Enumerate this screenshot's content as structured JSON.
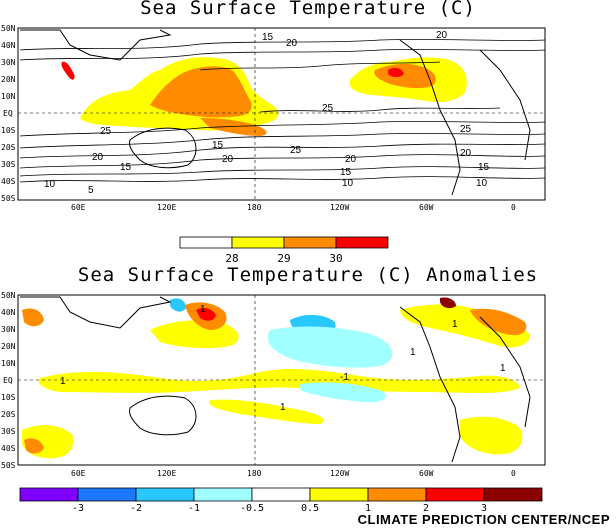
{
  "top_map": {
    "title": "Sea Surface Temperature (C)",
    "lat_labels": [
      "50N",
      "40N",
      "30N",
      "20N",
      "10N",
      "EQ",
      "10S",
      "20S",
      "30S",
      "40S",
      "50S"
    ],
    "lon_labels": [
      "60E",
      "120E",
      "180",
      "120W",
      "60W",
      "0"
    ],
    "contour_labels": [
      "15",
      "20",
      "25",
      "25",
      "20",
      "15",
      "10",
      "5",
      "15",
      "20",
      "25",
      "20",
      "15",
      "10",
      "25",
      "20",
      "15",
      "10",
      "20"
    ],
    "colorbar": {
      "labels": [
        "28",
        "29",
        "30"
      ],
      "colors": [
        "#ffffff",
        "#ffff00",
        "#ff8c00",
        "#ff0000"
      ]
    }
  },
  "bottom_map": {
    "title": "Sea Surface Temperature (C) Anomalies",
    "lat_labels": [
      "50N",
      "40N",
      "30N",
      "20N",
      "10N",
      "EQ",
      "10S",
      "20S",
      "30S",
      "40S",
      "50S"
    ],
    "lon_labels": [
      "60E",
      "120E",
      "180",
      "120W",
      "60W",
      "0"
    ],
    "contour_labels": [
      "1",
      "1",
      "1",
      "1",
      "1",
      "-1",
      "1"
    ],
    "colorbar": {
      "labels": [
        "-3",
        "-2",
        "-1",
        "-0.5",
        "0.5",
        "1",
        "2",
        "3"
      ],
      "colors": [
        "#8000ff",
        "#1e78ff",
        "#28c8ff",
        "#a0ffff",
        "#ffffff",
        "#ffff00",
        "#ff8c00",
        "#ff0000",
        "#8b0000"
      ]
    }
  },
  "credit": "CLIMATE PREDICTION CENTER/NCEP"
}
